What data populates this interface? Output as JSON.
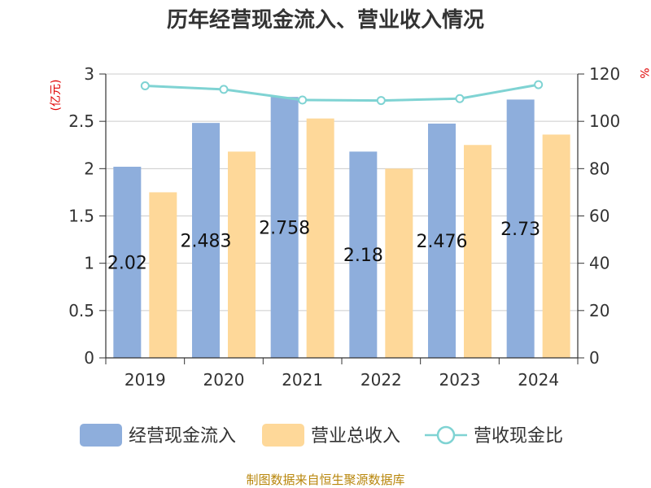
{
  "chart_data": {
    "type": "bar",
    "title": "历年经营现金流入、营业收入情况",
    "categories": [
      "2019",
      "2020",
      "2021",
      "2022",
      "2023",
      "2024"
    ],
    "series": [
      {
        "name": "经营现金流入",
        "type": "bar",
        "axis": "left",
        "color": "#8eaedc",
        "values": [
          2.02,
          2.483,
          2.758,
          2.18,
          2.476,
          2.73
        ]
      },
      {
        "name": "营业总收入",
        "type": "bar",
        "axis": "left",
        "color": "#fed899",
        "values": [
          1.75,
          2.18,
          2.53,
          2.0,
          2.25,
          2.36
        ]
      },
      {
        "name": "营收现金比",
        "type": "line",
        "axis": "right",
        "color": "#7fd3d3",
        "values": [
          115.0,
          113.5,
          109.0,
          108.8,
          109.6,
          115.5
        ]
      }
    ],
    "data_labels": [
      "2.02",
      "2.483",
      "2.758",
      "2.18",
      "2.476",
      "2.73"
    ],
    "y_left": {
      "label": "(亿元)",
      "ylim": [
        0,
        3
      ],
      "ticks": [
        "0",
        "0.5",
        "1",
        "1.5",
        "2",
        "2.5",
        "3"
      ]
    },
    "y_right": {
      "label": "%",
      "ylim": [
        0,
        120
      ],
      "ticks": [
        "0",
        "20",
        "40",
        "60",
        "80",
        "100",
        "120"
      ]
    },
    "grid": true,
    "legend_position": "bottom",
    "source": "制图数据来自恒生聚源数据库"
  }
}
